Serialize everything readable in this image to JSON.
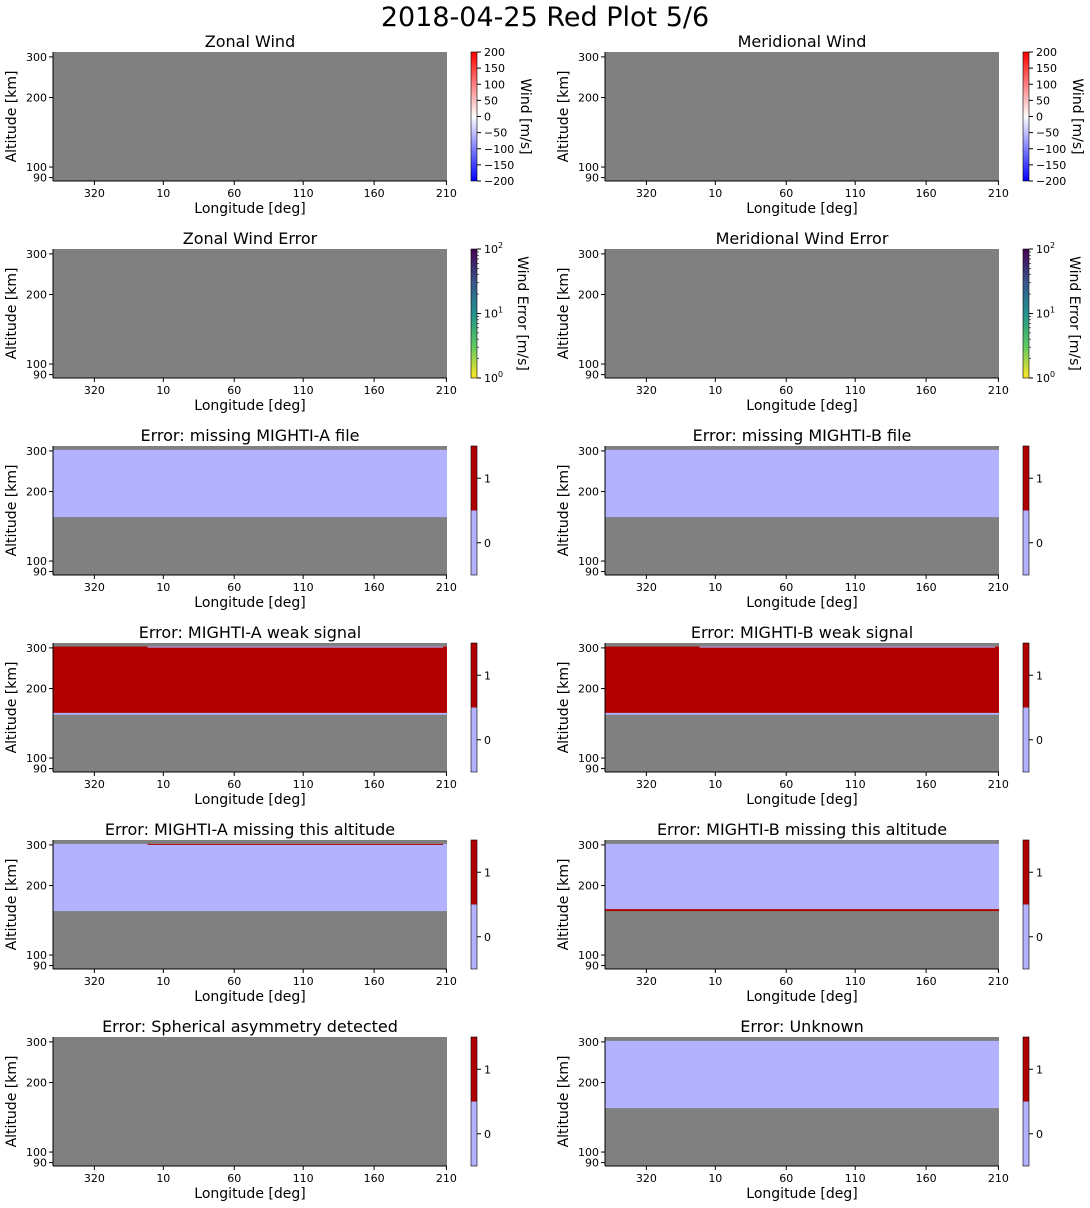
{
  "page_title": "2018-04-25 Red Plot 5/6",
  "colors": {
    "missing": "#808080",
    "flag_zero": "#b2b2ff",
    "flag_one": "#b20000",
    "wind_low": "#0000ff",
    "wind_mid": "#ffffff",
    "wind_high": "#ff0000",
    "error_cmap": [
      "#fde725",
      "#5ec962",
      "#21918c",
      "#3b528b",
      "#440154"
    ]
  },
  "chart_data": [
    {
      "type": "heatmap",
      "title": "Zonal Wind",
      "xlabel": "Longitude [deg]",
      "ylabel": "Altitude [km]",
      "x_ticks": [
        "320",
        "10",
        "60",
        "110",
        "160",
        "210"
      ],
      "y_ticks": [
        "300",
        "200",
        "100",
        "90"
      ],
      "ylim": [
        87,
        315
      ],
      "colorbar": {
        "kind": "wind",
        "label": "Wind [m/s]",
        "range": [
          -200,
          200
        ],
        "ticks": [
          "200",
          "150",
          "100",
          "50",
          "0",
          "−50",
          "−100",
          "−150",
          "−200"
        ]
      },
      "layers": [
        {
          "from": 87,
          "to": 315,
          "color": "missing"
        }
      ]
    },
    {
      "type": "heatmap",
      "title": "Meridional Wind",
      "xlabel": "Longitude [deg]",
      "ylabel": "Altitude [km]",
      "x_ticks": [
        "320",
        "10",
        "60",
        "110",
        "160",
        "210"
      ],
      "y_ticks": [
        "300",
        "200",
        "100",
        "90"
      ],
      "ylim": [
        87,
        315
      ],
      "colorbar": {
        "kind": "wind",
        "label": "Wind [m/s]",
        "range": [
          -200,
          200
        ],
        "ticks": [
          "200",
          "150",
          "100",
          "50",
          "0",
          "−50",
          "−100",
          "−150",
          "−200"
        ]
      },
      "layers": [
        {
          "from": 87,
          "to": 315,
          "color": "missing"
        }
      ]
    },
    {
      "type": "heatmap",
      "title": "Zonal Wind Error",
      "xlabel": "Longitude [deg]",
      "ylabel": "Altitude [km]",
      "x_ticks": [
        "320",
        "10",
        "60",
        "110",
        "160",
        "210"
      ],
      "y_ticks": [
        "300",
        "200",
        "100",
        "90"
      ],
      "ylim": [
        87,
        315
      ],
      "colorbar": {
        "kind": "error",
        "label": "Wind Error [m/s]",
        "scale": "log",
        "range": [
          1,
          100
        ],
        "ticks": [
          {
            "base": "10",
            "exp": "2"
          },
          {
            "base": "10",
            "exp": "1"
          },
          {
            "base": "10",
            "exp": "0"
          }
        ]
      },
      "layers": [
        {
          "from": 87,
          "to": 315,
          "color": "missing"
        }
      ]
    },
    {
      "type": "heatmap",
      "title": "Meridional Wind Error",
      "xlabel": "Longitude [deg]",
      "ylabel": "Altitude [km]",
      "x_ticks": [
        "320",
        "10",
        "60",
        "110",
        "160",
        "210"
      ],
      "y_ticks": [
        "300",
        "200",
        "100",
        "90"
      ],
      "ylim": [
        87,
        315
      ],
      "colorbar": {
        "kind": "error",
        "label": "Wind Error [m/s]",
        "scale": "log",
        "range": [
          1,
          100
        ],
        "ticks": [
          {
            "base": "10",
            "exp": "2"
          },
          {
            "base": "10",
            "exp": "1"
          },
          {
            "base": "10",
            "exp": "0"
          }
        ]
      },
      "layers": [
        {
          "from": 87,
          "to": 315,
          "color": "missing"
        }
      ]
    },
    {
      "type": "heatmap",
      "title": "Error: missing MIGHTI-A file",
      "xlabel": "Longitude [deg]",
      "ylabel": "Altitude [km]",
      "x_ticks": [
        "320",
        "10",
        "60",
        "110",
        "160",
        "210"
      ],
      "y_ticks": [
        "300",
        "200",
        "100",
        "90"
      ],
      "ylim": [
        87,
        315
      ],
      "colorbar": {
        "kind": "flag",
        "range": [
          -0.5,
          1.5
        ],
        "ticks": [
          "1",
          "0"
        ]
      },
      "layers": [
        {
          "from": 87,
          "to": 315,
          "color": "missing"
        },
        {
          "from": 155,
          "to": 303,
          "color": "flag_zero"
        }
      ]
    },
    {
      "type": "heatmap",
      "title": "Error: missing MIGHTI-B file",
      "xlabel": "Longitude [deg]",
      "ylabel": "Altitude [km]",
      "x_ticks": [
        "320",
        "10",
        "60",
        "110",
        "160",
        "210"
      ],
      "y_ticks": [
        "300",
        "200",
        "100",
        "90"
      ],
      "ylim": [
        87,
        315
      ],
      "colorbar": {
        "kind": "flag",
        "range": [
          -0.5,
          1.5
        ],
        "ticks": [
          "1",
          "0"
        ]
      },
      "layers": [
        {
          "from": 87,
          "to": 315,
          "color": "missing"
        },
        {
          "from": 155,
          "to": 303,
          "color": "flag_zero"
        }
      ]
    },
    {
      "type": "heatmap",
      "title": "Error: MIGHTI-A weak signal",
      "xlabel": "Longitude [deg]",
      "ylabel": "Altitude [km]",
      "x_ticks": [
        "320",
        "10",
        "60",
        "110",
        "160",
        "210"
      ],
      "y_ticks": [
        "300",
        "200",
        "100",
        "90"
      ],
      "ylim": [
        87,
        315
      ],
      "colorbar": {
        "kind": "flag",
        "range": [
          -0.5,
          1.5
        ],
        "ticks": [
          "1",
          "0"
        ]
      },
      "layers": [
        {
          "from": 87,
          "to": 315,
          "color": "missing"
        },
        {
          "from": 154,
          "to": 157,
          "color": "flag_zero"
        },
        {
          "from": 157,
          "to": 304,
          "color": "flag_one"
        },
        {
          "from": 302,
          "to": 304,
          "color": "flag_zero",
          "lon_from": 0,
          "lon_to": 140
        }
      ]
    },
    {
      "type": "heatmap",
      "title": "Error: MIGHTI-B weak signal",
      "xlabel": "Longitude [deg]",
      "ylabel": "Altitude [km]",
      "x_ticks": [
        "320",
        "10",
        "60",
        "110",
        "160",
        "210"
      ],
      "y_ticks": [
        "300",
        "200",
        "100",
        "90"
      ],
      "ylim": [
        87,
        315
      ],
      "colorbar": {
        "kind": "flag",
        "range": [
          -0.5,
          1.5
        ],
        "ticks": [
          "1",
          "0"
        ]
      },
      "layers": [
        {
          "from": 87,
          "to": 315,
          "color": "missing"
        },
        {
          "from": 154,
          "to": 157,
          "color": "flag_zero"
        },
        {
          "from": 157,
          "to": 304,
          "color": "flag_one"
        },
        {
          "from": 302,
          "to": 304,
          "color": "flag_zero",
          "lon_from": 0,
          "lon_to": 140
        }
      ]
    },
    {
      "type": "heatmap",
      "title": "Error: MIGHTI-A missing this altitude",
      "xlabel": "Longitude [deg]",
      "ylabel": "Altitude [km]",
      "x_ticks": [
        "320",
        "10",
        "60",
        "110",
        "160",
        "210"
      ],
      "y_ticks": [
        "300",
        "200",
        "100",
        "90"
      ],
      "ylim": [
        87,
        315
      ],
      "colorbar": {
        "kind": "flag",
        "range": [
          -0.5,
          1.5
        ],
        "ticks": [
          "1",
          "0"
        ]
      },
      "layers": [
        {
          "from": 87,
          "to": 315,
          "color": "missing"
        },
        {
          "from": 155,
          "to": 303,
          "color": "flag_zero"
        },
        {
          "from": 300,
          "to": 303,
          "color": "flag_one",
          "lon_from": 0,
          "lon_to": 140
        }
      ]
    },
    {
      "type": "heatmap",
      "title": "Error: MIGHTI-B missing this altitude",
      "xlabel": "Longitude [deg]",
      "ylabel": "Altitude [km]",
      "x_ticks": [
        "320",
        "10",
        "60",
        "110",
        "160",
        "210"
      ],
      "y_ticks": [
        "300",
        "200",
        "100",
        "90"
      ],
      "ylim": [
        87,
        315
      ],
      "colorbar": {
        "kind": "flag",
        "range": [
          -0.5,
          1.5
        ],
        "ticks": [
          "1",
          "0"
        ]
      },
      "layers": [
        {
          "from": 87,
          "to": 315,
          "color": "missing"
        },
        {
          "from": 158,
          "to": 303,
          "color": "flag_zero"
        },
        {
          "from": 155,
          "to": 158,
          "color": "flag_one"
        }
      ]
    },
    {
      "type": "heatmap",
      "title": "Error: Spherical asymmetry detected",
      "xlabel": "Longitude [deg]",
      "ylabel": "Altitude [km]",
      "x_ticks": [
        "320",
        "10",
        "60",
        "110",
        "160",
        "210"
      ],
      "y_ticks": [
        "300",
        "200",
        "100",
        "90"
      ],
      "ylim": [
        87,
        315
      ],
      "colorbar": {
        "kind": "flag",
        "range": [
          -0.5,
          1.5
        ],
        "ticks": [
          "1",
          "0"
        ]
      },
      "layers": [
        {
          "from": 87,
          "to": 315,
          "color": "missing"
        }
      ]
    },
    {
      "type": "heatmap",
      "title": "Error: Unknown",
      "xlabel": "Longitude [deg]",
      "ylabel": "Altitude [km]",
      "x_ticks": [
        "320",
        "10",
        "60",
        "110",
        "160",
        "210"
      ],
      "y_ticks": [
        "300",
        "200",
        "100",
        "90"
      ],
      "ylim": [
        87,
        315
      ],
      "colorbar": {
        "kind": "flag",
        "range": [
          -0.5,
          1.5
        ],
        "ticks": [
          "1",
          "0"
        ]
      },
      "layers": [
        {
          "from": 87,
          "to": 315,
          "color": "missing"
        },
        {
          "from": 155,
          "to": 303,
          "color": "flag_zero"
        }
      ]
    }
  ]
}
